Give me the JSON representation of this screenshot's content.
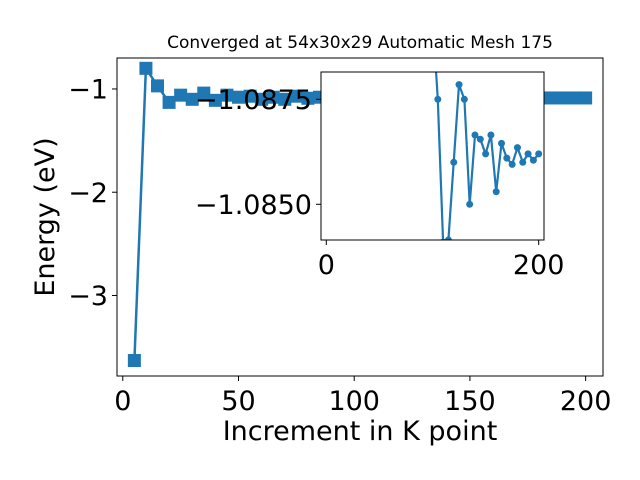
{
  "chart_data": [
    {
      "type": "line",
      "title": "Converged at 54x30x29 Automatic Mesh 175",
      "xlabel": "Increment in K point",
      "ylabel": "Energy (eV)",
      "xlim": [
        -2.5,
        207.5
      ],
      "ylim": [
        -3.78,
        -0.7
      ],
      "xticks": [
        0,
        50,
        100,
        150,
        200
      ],
      "xtick_labels": [
        "0",
        "50",
        "100",
        "150",
        "200"
      ],
      "yticks": [
        -3,
        -2,
        -1
      ],
      "ytick_labels": [
        "−3",
        "−2",
        "−1"
      ],
      "marker": "square",
      "color": "#1f77b4",
      "grid": false,
      "series": [
        {
          "x": [
            5,
            10,
            15,
            20,
            25,
            30,
            35,
            40,
            45,
            50,
            55,
            60,
            65,
            70,
            75,
            80,
            85,
            90,
            95,
            100,
            105,
            110,
            115,
            120,
            125,
            130,
            135,
            140,
            145,
            150,
            155,
            160,
            165,
            170,
            175,
            180,
            185,
            190,
            195,
            200
          ],
          "values": [
            -3.63,
            -0.8,
            -0.97,
            -1.13,
            -1.06,
            -1.1,
            -1.04,
            -1.11,
            -1.06,
            -1.08,
            -1.07,
            -1.1,
            -1.08,
            -1.1,
            -1.07,
            -1.09,
            -1.08,
            -1.09,
            -1.08,
            -1.09,
            -1.08,
            -1.09,
            -1.08,
            -1.09,
            -1.085,
            -1.088,
            -1.087,
            -1.087,
            -1.086,
            -1.087,
            -1.087,
            -1.087,
            -1.087,
            -1.087,
            -1.087,
            -1.087,
            -1.087,
            -1.087,
            -1.087,
            -1.087
          ]
        }
      ]
    },
    {
      "type": "line",
      "title": "",
      "xlim": [
        -5,
        205
      ],
      "ylim": [
        -1.08415,
        -1.08815
      ],
      "xticks": [
        0,
        200
      ],
      "xtick_labels": [
        "0",
        "200"
      ],
      "yticks": [
        -1.0875,
        -1.085
      ],
      "ytick_labels": [
        "−1.0875",
        "−1.0850"
      ],
      "marker": "circle",
      "color": "#1f77b4",
      "grid": false,
      "series": [
        {
          "x": [
            100,
            105,
            110,
            115,
            120,
            125,
            130,
            135,
            140,
            145,
            150,
            155,
            160,
            165,
            170,
            175,
            180,
            185,
            190,
            195,
            200
          ],
          "values": [
            -1.0895,
            -1.0875,
            -1.0841,
            -1.08415,
            -1.086,
            -1.08785,
            -1.0875,
            -1.085,
            -1.08665,
            -1.08655,
            -1.0862,
            -1.08665,
            -1.0853,
            -1.08645,
            -1.0861,
            -1.08595,
            -1.08635,
            -1.086,
            -1.0862,
            -1.08605,
            -1.0862
          ]
        }
      ]
    }
  ]
}
